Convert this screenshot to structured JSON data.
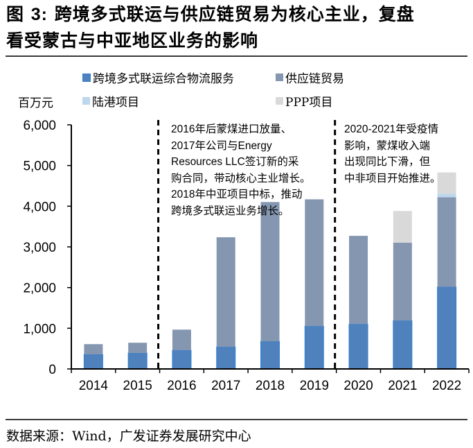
{
  "figure": {
    "title_prefix": "图",
    "title_number": "3:",
    "title_line1": "跨境多式联运与供应链贸易为核心主业，复盘",
    "title_line2": "看受蒙古与中亚地区业务的影响",
    "source": "数据来源：Wind，广发证券发展研究中心"
  },
  "chart_data": {
    "type": "bar",
    "stacked": true,
    "title": "跨境多式联运与供应链贸易为核心主业，复盘看受蒙古与中亚地区业务的影响",
    "xlabel": "",
    "ylabel": "百万元",
    "ylim": [
      0,
      6000
    ],
    "yticks": [
      0,
      1000,
      2000,
      3000,
      4000,
      5000,
      6000
    ],
    "ytick_labels": [
      "0",
      "1,000",
      "2,000",
      "3,000",
      "4,000",
      "5,000",
      "6,000"
    ],
    "categories": [
      "2014",
      "2015",
      "2016",
      "2017",
      "2018",
      "2019",
      "2020",
      "2021",
      "2022"
    ],
    "grid": false,
    "legend_position": "top",
    "series": [
      {
        "name": "跨境多式联运综合物流服务",
        "color": "#4f81bd",
        "edge": "#2f7fd6",
        "values": [
          356,
          390,
          458,
          542,
          678,
          1051,
          1102,
          1186,
          2017
        ]
      },
      {
        "name": "供应链贸易",
        "color": "#8496b0",
        "values": [
          254,
          254,
          508,
          2695,
          3424,
          3118,
          2169,
          1916,
          2203
        ]
      },
      {
        "name": "陆港项目",
        "color": "#bdd7ee",
        "values": [
          0,
          0,
          0,
          0,
          0,
          0,
          0,
          0,
          85
        ]
      },
      {
        "name": "PPP项目",
        "color": "#d9d9d9",
        "values": [
          0,
          0,
          0,
          0,
          0,
          0,
          0,
          780,
          525
        ]
      }
    ],
    "dividers_after_categories": [
      "2015",
      "2019"
    ],
    "annotations": [
      {
        "text": "2016年后蒙煤进口放量、\n2017年公司与Energy\nResources LLC签订新的采\n购合同，带动核心主业增长。\n2018年中亚项目中标，推动\n跨境多式联运业务增长。"
      },
      {
        "text": "2020-2021年受疫情\n影响，蒙煤收入端\n出现同比下滑，但\n中非项目开始推进。"
      }
    ]
  }
}
